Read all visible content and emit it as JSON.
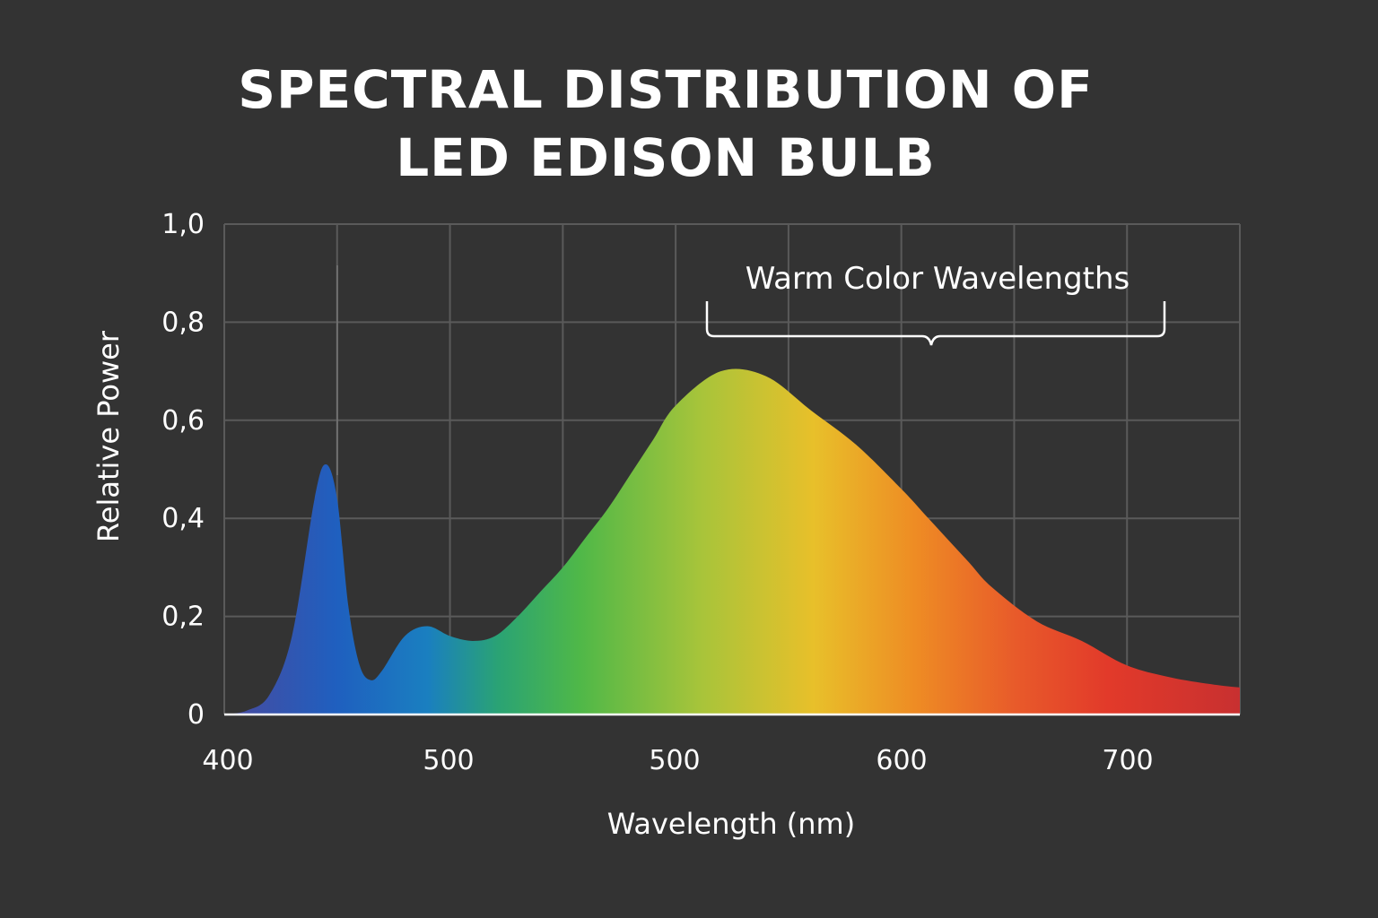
{
  "chart_data": {
    "type": "area",
    "title": [
      "SPECTRAL DISTRIBUTION OF",
      "LED EDISON BULB"
    ],
    "xlabel": "Wavelength (nm)",
    "ylabel": "Relative Power",
    "x_tick_labels": [
      "400",
      "500",
      "500",
      "600",
      "700"
    ],
    "y_ticks": [
      0,
      0.2,
      0.4,
      0.6,
      0.8,
      1.0
    ],
    "y_tick_labels": [
      "0",
      "0,2",
      "0,4",
      "0,6",
      "0,8",
      "1,0"
    ],
    "xlim": [
      400,
      850
    ],
    "ylim": [
      0,
      1.0
    ],
    "grid": true,
    "annotation": "Warm Color Wavelengths",
    "annotation_range": [
      615,
      817
    ],
    "series": [
      {
        "x": [
          400,
          410,
          420,
          430,
          440,
          445,
          450,
          455,
          460,
          465,
          470,
          480,
          490,
          500,
          510,
          520,
          530,
          540,
          550,
          560,
          570,
          580,
          590,
          600,
          620,
          640,
          660,
          680,
          700,
          710,
          720,
          730,
          740,
          760,
          780,
          800,
          820,
          840,
          850
        ],
        "values": [
          0.0,
          0.008,
          0.04,
          0.16,
          0.44,
          0.51,
          0.44,
          0.22,
          0.1,
          0.07,
          0.09,
          0.16,
          0.18,
          0.16,
          0.15,
          0.16,
          0.2,
          0.25,
          0.3,
          0.36,
          0.42,
          0.49,
          0.56,
          0.63,
          0.7,
          0.69,
          0.62,
          0.55,
          0.46,
          0.41,
          0.36,
          0.31,
          0.26,
          0.19,
          0.15,
          0.1,
          0.075,
          0.06,
          0.055
        ]
      }
    ],
    "colors": {
      "background": "#333333",
      "grid": "#5a5a5a",
      "gradient": [
        "#4a4a9e",
        "#1f5fbf",
        "#1a7fc0",
        "#2aa374",
        "#4fb848",
        "#a8c43a",
        "#e8c02a",
        "#ee8c24",
        "#e85a2a",
        "#e23a2a",
        "#c83030"
      ]
    }
  }
}
